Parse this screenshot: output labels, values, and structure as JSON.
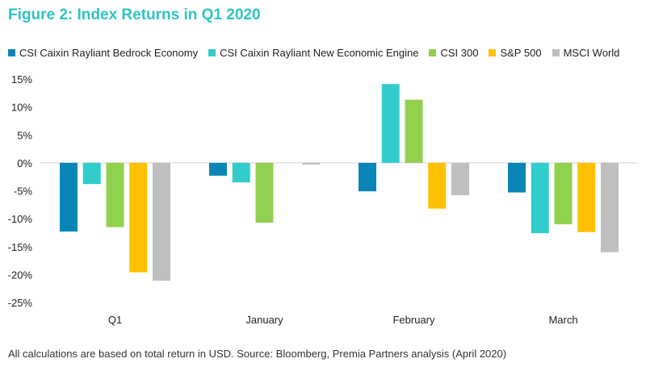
{
  "title": "Figure 2: Index Returns in Q1 2020",
  "footnote": "All calculations are based on total return in USD. Source: Bloomberg, Premia Partners analysis (April 2020)",
  "chart_data": {
    "type": "bar",
    "title": "Figure 2: Index Returns in Q1 2020",
    "xlabel": "",
    "ylabel": "",
    "categories": [
      "Q1",
      "January",
      "February",
      "March"
    ],
    "ylim": [
      -25,
      15
    ],
    "yticks": [
      15,
      10,
      5,
      0,
      -5,
      -10,
      -15,
      -20,
      -25
    ],
    "ytick_labels": [
      "15%",
      "10%",
      "5%",
      "0%",
      "-5%",
      "-10%",
      "-15%",
      "-20%",
      "-25%"
    ],
    "grid": false,
    "legend_position": "top",
    "series": [
      {
        "name": "CSI Caixin Rayliant Bedrock Economy",
        "color": "#0a85b8",
        "values": [
          -12.3,
          -2.3,
          -5.1,
          -5.3
        ]
      },
      {
        "name": "CSI Caixin Rayliant New Economic Engine",
        "color": "#33cccc",
        "values": [
          -3.8,
          -3.5,
          14.1,
          -12.6
        ]
      },
      {
        "name": "CSI 300",
        "color": "#92d050",
        "values": [
          -11.5,
          -10.7,
          11.3,
          -11.0
        ]
      },
      {
        "name": "S&P 500",
        "color": "#ffc000",
        "values": [
          -19.6,
          0,
          -8.2,
          -12.4
        ]
      },
      {
        "name": "MSCI World",
        "color": "#bfbfbf",
        "values": [
          -21.1,
          -0.3,
          -5.8,
          -16.0
        ]
      }
    ]
  }
}
